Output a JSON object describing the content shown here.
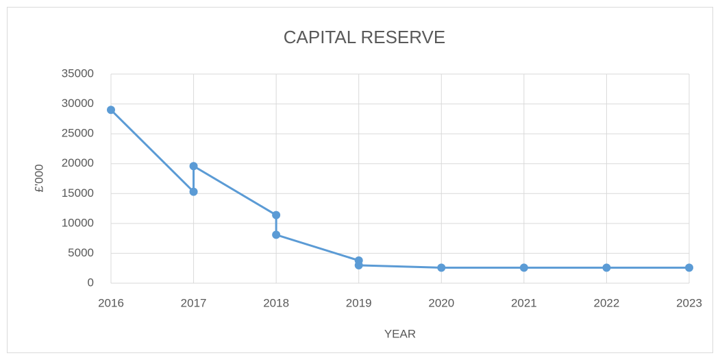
{
  "chart_data": {
    "type": "scatter-line",
    "title": "CAPITAL RESERVE",
    "x_label": "YEAR",
    "y_label": "£'000",
    "series": [
      {
        "name": "Capital reserve",
        "color": "#5b9bd5",
        "x": [
          2016,
          2017,
          2017,
          2018,
          2018,
          2019,
          2019,
          2020,
          2021,
          2022,
          2023
        ],
        "values": [
          29000,
          15300,
          19600,
          11400,
          8100,
          3800,
          3000,
          2600,
          2600,
          2600,
          2600
        ]
      }
    ],
    "xlim": [
      2016,
      2023
    ],
    "xticks": [
      2016,
      2017,
      2018,
      2019,
      2020,
      2021,
      2022,
      2023
    ],
    "ylim": [
      0,
      35000
    ],
    "yticks": [
      0,
      5000,
      10000,
      15000,
      20000,
      25000,
      30000,
      35000
    ],
    "grid": true
  }
}
